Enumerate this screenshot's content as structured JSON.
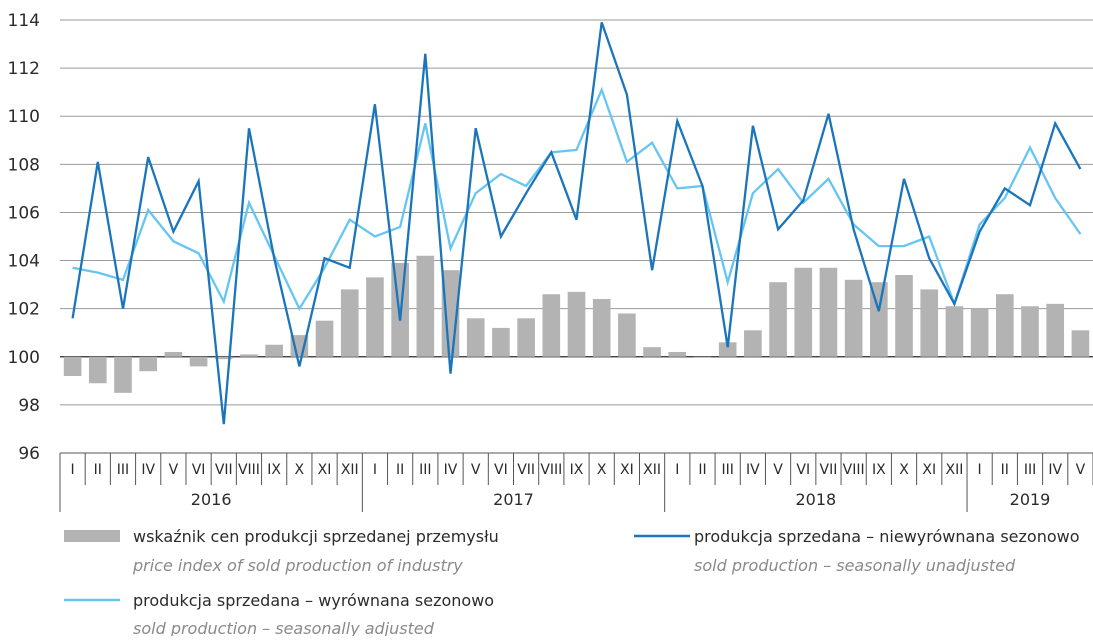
{
  "colors": {
    "bars": "#b3b3b3",
    "unadjusted": "#1b75bb",
    "adjusted": "#67c5f1",
    "grid": "#9a9a9a",
    "axis": "#555555"
  },
  "legend": {
    "bars": {
      "label": "wskaźnik cen produkcji sprzedanej przemysłu",
      "sublabel": "price index of sold production of industry"
    },
    "unadjusted": {
      "label": "produkcja sprzedana – niewyrównana sezonowo",
      "sublabel": "sold production – seasonally unadjusted"
    },
    "adjusted": {
      "label": "produkcja sprzedana – wyrównana sezonowo",
      "sublabel": "sold production – seasonally adjusted"
    }
  },
  "chart_data": {
    "type": "bar",
    "ylim": [
      96,
      114
    ],
    "yticks": [
      96,
      98,
      100,
      102,
      104,
      106,
      108,
      110,
      112,
      114
    ],
    "grid": true,
    "baseline": 100,
    "legend_position": "bottom",
    "categories": [
      "I",
      "II",
      "III",
      "IV",
      "V",
      "VI",
      "VII",
      "VIII",
      "IX",
      "X",
      "XI",
      "XII",
      "I",
      "II",
      "III",
      "IV",
      "V",
      "VI",
      "VII",
      "VIII",
      "IX",
      "X",
      "XI",
      "XII",
      "I",
      "II",
      "III",
      "IV",
      "V",
      "VI",
      "VII",
      "VIII",
      "IX",
      "X",
      "XI",
      "XII",
      "I",
      "II",
      "III",
      "IV",
      "V"
    ],
    "years": [
      {
        "label": "2016",
        "count": 12
      },
      {
        "label": "2017",
        "count": 12
      },
      {
        "label": "2018",
        "count": 12
      },
      {
        "label": "2019",
        "count": 5
      }
    ],
    "series": [
      {
        "name": "wskaźnik cen produkcji sprzedanej przemysłu",
        "kind": "bar",
        "values": [
          99.2,
          98.9,
          98.5,
          99.4,
          100.2,
          99.6,
          99.9,
          100.1,
          100.5,
          100.9,
          101.5,
          102.8,
          103.3,
          103.9,
          104.2,
          103.6,
          101.6,
          101.2,
          101.6,
          102.6,
          102.7,
          102.4,
          101.8,
          100.4,
          100.2,
          100.0,
          100.6,
          101.1,
          103.1,
          103.7,
          103.7,
          103.2,
          103.1,
          103.4,
          102.8,
          102.1,
          102.0,
          102.6,
          102.1,
          102.2,
          101.1
        ]
      },
      {
        "name": "produkcja sprzedana – niewyrównana sezonowo",
        "kind": "line",
        "values": [
          101.6,
          108.1,
          102.0,
          108.3,
          105.2,
          107.3,
          97.2,
          109.5,
          104.1,
          99.6,
          104.1,
          103.7,
          110.5,
          101.5,
          112.6,
          99.3,
          109.5,
          105.0,
          106.8,
          108.5,
          105.7,
          113.9,
          110.9,
          103.6,
          109.8,
          107.1,
          100.4,
          109.6,
          105.3,
          106.5,
          110.1,
          105.3,
          101.9,
          107.4,
          104.1,
          102.2,
          105.2,
          107.0,
          106.3,
          109.7,
          107.8
        ]
      },
      {
        "name": "produkcja sprzedana – wyrównana sezonowo",
        "kind": "line",
        "values": [
          103.7,
          103.5,
          103.2,
          106.1,
          104.8,
          104.3,
          102.3,
          106.4,
          104.2,
          102.0,
          103.7,
          105.7,
          105.0,
          105.4,
          109.7,
          104.5,
          106.8,
          107.6,
          107.1,
          108.5,
          108.6,
          111.1,
          108.1,
          108.9,
          107.0,
          107.1,
          103.1,
          106.8,
          107.8,
          106.4,
          107.4,
          105.5,
          104.6,
          104.6,
          105.0,
          102.2,
          105.5,
          106.6,
          108.7,
          106.6,
          105.1
        ]
      }
    ]
  }
}
